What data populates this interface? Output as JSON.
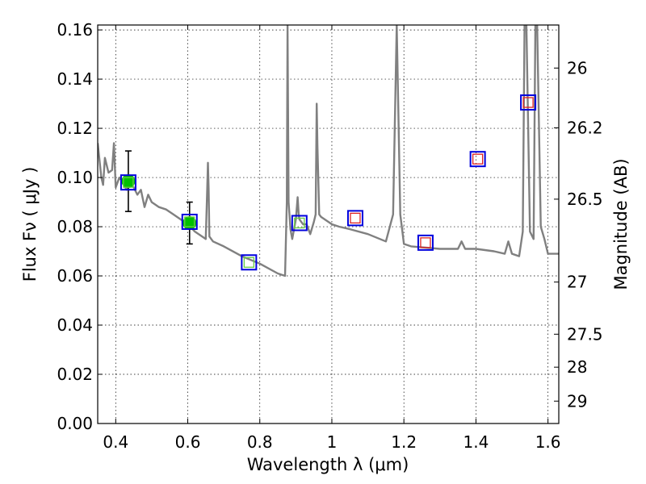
{
  "chart_data": {
    "type": "scatter",
    "title": "",
    "xlabel": "Wavelength  λ (μm)",
    "ylabel": "Flux  Fν  ( μJy )",
    "y2label": "Magnitude (AB)",
    "xlim": [
      0.35,
      1.63
    ],
    "ylim": [
      0.0,
      0.162
    ],
    "grid": true,
    "x_ticks": [
      0.4,
      0.6,
      0.8,
      1.0,
      1.2,
      1.4,
      1.6
    ],
    "x_tick_labels": [
      "0.4",
      "0.6",
      "0.8",
      "1",
      "1.2",
      "1.4",
      "1.6"
    ],
    "y_ticks": [
      0.0,
      0.02,
      0.04,
      0.06,
      0.08,
      0.1,
      0.12,
      0.14,
      0.16
    ],
    "y_tick_labels": [
      "0.00",
      "0.02",
      "0.04",
      "0.06",
      "0.08",
      "0.10",
      "0.12",
      "0.14",
      "0.16"
    ],
    "y2_ticks": [
      {
        "label": "26",
        "flux": 0.1445
      },
      {
        "label": "26.2",
        "flux": 0.1202
      },
      {
        "label": "26.5",
        "flux": 0.0912
      },
      {
        "label": "27",
        "flux": 0.0575
      },
      {
        "label": "27.5",
        "flux": 0.0363
      },
      {
        "label": "28",
        "flux": 0.0229
      },
      {
        "label": "29",
        "flux": 0.0091
      }
    ],
    "colors": {
      "model": "#808080",
      "detection": "#00c000",
      "box_outer": "#0000dd",
      "box_inner_green": "#66cc44",
      "box_inner_red": "#dd2222",
      "errorbar": "#000000"
    },
    "model_spectrum": {
      "x": [
        0.35,
        0.36,
        0.365,
        0.37,
        0.38,
        0.39,
        0.395,
        0.4,
        0.41,
        0.42,
        0.43,
        0.44,
        0.45,
        0.46,
        0.47,
        0.48,
        0.49,
        0.5,
        0.52,
        0.54,
        0.56,
        0.58,
        0.6,
        0.62,
        0.64,
        0.65,
        0.654,
        0.656,
        0.658,
        0.66,
        0.67,
        0.7,
        0.75,
        0.8,
        0.85,
        0.87,
        0.875,
        0.877,
        0.88,
        0.885,
        0.89,
        0.9,
        0.905,
        0.908,
        0.91,
        0.92,
        0.93,
        0.94,
        0.95,
        0.955,
        0.958,
        0.96,
        0.965,
        0.97,
        1.0,
        1.02,
        1.05,
        1.1,
        1.15,
        1.17,
        1.18,
        1.19,
        1.2,
        1.22,
        1.3,
        1.35,
        1.36,
        1.37,
        1.4,
        1.45,
        1.48,
        1.49,
        1.5,
        1.52,
        1.53,
        1.535,
        1.54,
        1.55,
        1.56,
        1.565,
        1.57,
        1.58,
        1.59,
        1.6,
        1.63
      ],
      "y": [
        0.114,
        0.1,
        0.097,
        0.108,
        0.102,
        0.103,
        0.114,
        0.096,
        0.1,
        0.098,
        0.095,
        0.097,
        0.096,
        0.093,
        0.095,
        0.088,
        0.093,
        0.09,
        0.088,
        0.087,
        0.085,
        0.083,
        0.081,
        0.078,
        0.076,
        0.075,
        0.095,
        0.106,
        0.095,
        0.076,
        0.074,
        0.072,
        0.068,
        0.065,
        0.061,
        0.06,
        0.09,
        0.162,
        0.09,
        0.079,
        0.075,
        0.083,
        0.092,
        0.085,
        0.083,
        0.081,
        0.081,
        0.077,
        0.082,
        0.085,
        0.13,
        0.113,
        0.085,
        0.084,
        0.081,
        0.08,
        0.079,
        0.077,
        0.074,
        0.085,
        0.162,
        0.085,
        0.073,
        0.072,
        0.071,
        0.071,
        0.074,
        0.071,
        0.071,
        0.07,
        0.069,
        0.074,
        0.069,
        0.068,
        0.078,
        0.162,
        0.162,
        0.078,
        0.075,
        0.162,
        0.162,
        0.08,
        0.075,
        0.069,
        0.069
      ]
    },
    "detections": [
      {
        "x": 0.435,
        "y": 0.0985,
        "yerr": 0.0123
      },
      {
        "x": 0.605,
        "y": 0.0815,
        "yerr": 0.0085
      }
    ],
    "model_points_green": [
      {
        "x": 0.435,
        "y": 0.098
      },
      {
        "x": 0.605,
        "y": 0.082
      },
      {
        "x": 0.77,
        "y": 0.0655
      },
      {
        "x": 0.91,
        "y": 0.0815
      }
    ],
    "model_points_red": [
      {
        "x": 1.065,
        "y": 0.0835
      },
      {
        "x": 1.26,
        "y": 0.0735
      },
      {
        "x": 1.405,
        "y": 0.1075
      },
      {
        "x": 1.545,
        "y": 0.1305
      }
    ]
  }
}
